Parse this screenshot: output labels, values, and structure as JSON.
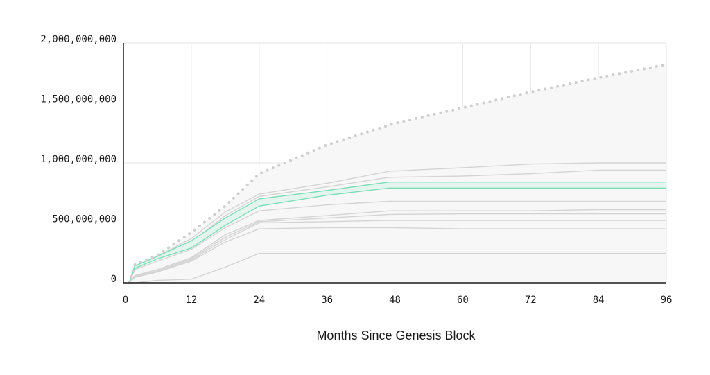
{
  "chart_data": {
    "type": "line",
    "title": "",
    "xlabel": "Months Since Genesis Block",
    "ylabel": "",
    "xlim": [
      0,
      96
    ],
    "ylim": [
      0,
      2000000000
    ],
    "x_ticks": [
      0,
      12,
      24,
      36,
      48,
      60,
      72,
      84,
      96
    ],
    "x_tick_labels": [
      "0",
      "12",
      "24",
      "36",
      "48",
      "60",
      "72",
      "84",
      "96"
    ],
    "y_ticks": [
      0,
      500000000,
      1000000000,
      1500000000,
      2000000000
    ],
    "y_tick_labels": [
      "0",
      "500,000,000",
      "1,000,000,000",
      "1,500,000,000",
      "2,000,000,000"
    ],
    "grid": true,
    "max_supply": {
      "style": "dotted",
      "color": "#cfcfcf",
      "area_color": "#f7f7f7",
      "x": [
        1,
        2,
        6,
        12,
        18,
        24,
        36,
        48,
        60,
        72,
        84,
        96
      ],
      "y": [
        0,
        150000000,
        230000000,
        420000000,
        640000000,
        910000000,
        1150000000,
        1330000000,
        1460000000,
        1590000000,
        1710000000,
        1820000000
      ]
    },
    "highlight_band": {
      "color": "#7ddcb8",
      "fill": "#e3f5ee",
      "x": [
        1,
        2,
        6,
        12,
        18,
        24,
        36,
        47,
        60,
        72,
        84,
        96
      ],
      "upper": [
        0,
        140000000,
        220000000,
        350000000,
        540000000,
        700000000,
        770000000,
        840000000,
        840000000,
        840000000,
        840000000,
        840000000
      ],
      "lower": [
        0,
        120000000,
        200000000,
        290000000,
        480000000,
        640000000,
        730000000,
        790000000,
        790000000,
        790000000,
        790000000,
        790000000
      ]
    },
    "series": [
      {
        "color": "#d4d4d4",
        "x": [
          1,
          2,
          6,
          12,
          18,
          24,
          36,
          47,
          60,
          72,
          84,
          96
        ],
        "values": [
          0,
          140000000,
          220000000,
          370000000,
          590000000,
          740000000,
          830000000,
          930000000,
          960000000,
          990000000,
          1000000000,
          1000000000
        ]
      },
      {
        "color": "#d4d4d4",
        "x": [
          1,
          2,
          6,
          12,
          18,
          24,
          36,
          47,
          60,
          72,
          84,
          96
        ],
        "values": [
          0,
          140000000,
          220000000,
          340000000,
          560000000,
          720000000,
          800000000,
          880000000,
          890000000,
          910000000,
          940000000,
          940000000
        ]
      },
      {
        "color": "#d4d4d4",
        "x": [
          1,
          2,
          6,
          12,
          18,
          24,
          36,
          47,
          60,
          72,
          84,
          96
        ],
        "values": [
          0,
          110000000,
          180000000,
          280000000,
          460000000,
          600000000,
          650000000,
          680000000,
          680000000,
          680000000,
          680000000,
          680000000
        ]
      },
      {
        "color": "#d4d4d4",
        "x": [
          1,
          2,
          6,
          12,
          18,
          24,
          36,
          47,
          60,
          72,
          84,
          96
        ],
        "values": [
          0,
          60000000,
          110000000,
          210000000,
          400000000,
          520000000,
          560000000,
          600000000,
          600000000,
          600000000,
          610000000,
          610000000
        ]
      },
      {
        "color": "#d4d4d4",
        "x": [
          1,
          2,
          6,
          12,
          18,
          24,
          36,
          47,
          60,
          72,
          84,
          96
        ],
        "values": [
          0,
          55000000,
          100000000,
          200000000,
          380000000,
          510000000,
          540000000,
          570000000,
          575000000,
          575000000,
          575000000,
          575000000
        ]
      },
      {
        "color": "#d4d4d4",
        "x": [
          1,
          2,
          6,
          12,
          18,
          24,
          36,
          47,
          60,
          72,
          84,
          96
        ],
        "values": [
          0,
          50000000,
          95000000,
          190000000,
          360000000,
          500000000,
          510000000,
          520000000,
          520000000,
          520000000,
          520000000,
          520000000
        ]
      },
      {
        "color": "#d4d4d4",
        "x": [
          1,
          2,
          6,
          12,
          18,
          24,
          36,
          47,
          60,
          72,
          84,
          96
        ],
        "values": [
          0,
          45000000,
          90000000,
          180000000,
          340000000,
          450000000,
          460000000,
          460000000,
          450000000,
          450000000,
          450000000,
          450000000
        ]
      },
      {
        "color": "#d4d4d4",
        "x": [
          1,
          2,
          6,
          12,
          18,
          24,
          36,
          47,
          60,
          72,
          84,
          96
        ],
        "values": [
          0,
          0,
          20000000,
          30000000,
          130000000,
          245000000,
          245000000,
          245000000,
          245000000,
          245000000,
          245000000,
          245000000
        ]
      }
    ]
  }
}
